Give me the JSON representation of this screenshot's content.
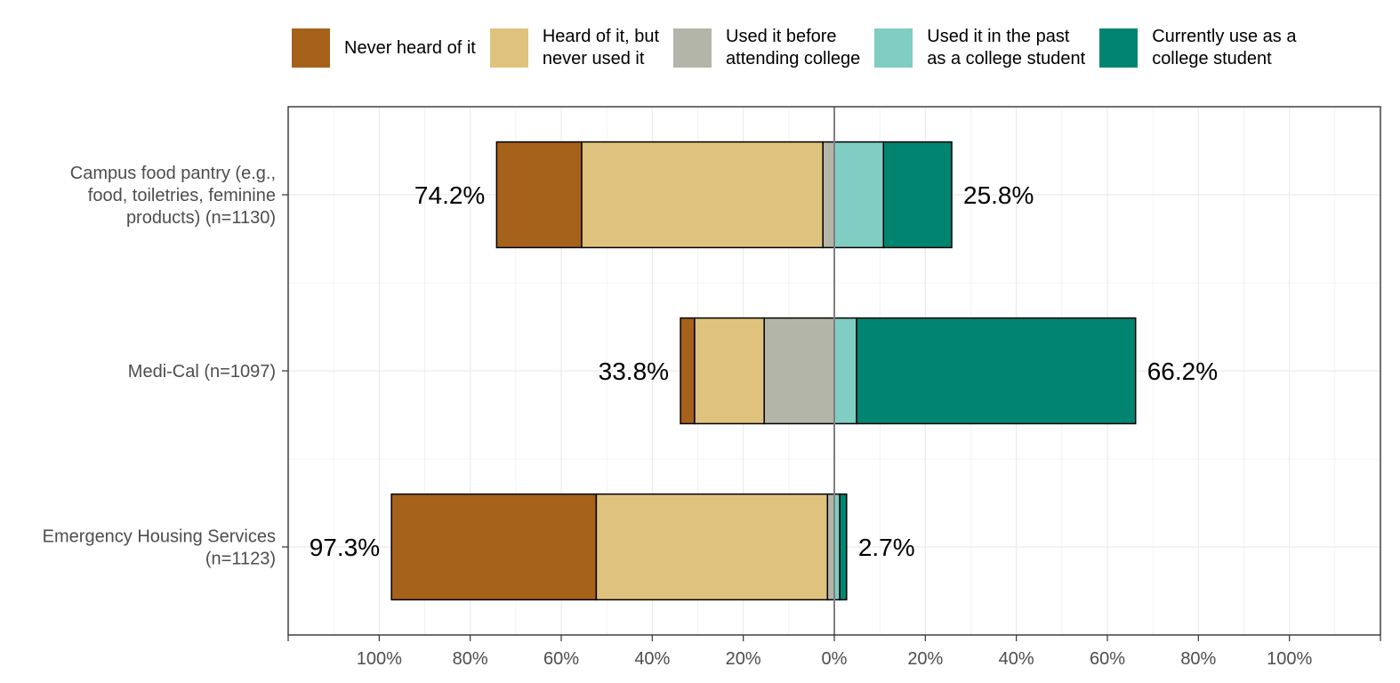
{
  "chart_data": {
    "type": "bar",
    "orientation": "horizontal",
    "stacking": "diverging",
    "categories": [
      "Campus food pantry (e.g.,\nfood, toiletries, feminine\nproducts) (n=1130)",
      "Medi-Cal (n=1097)",
      "Emergency Housing Services\n(n=1123)"
    ],
    "series": [
      {
        "name": "Never heard of it",
        "color": "#A6611A",
        "side": "negative",
        "values": [
          18.7,
          3.1,
          45.0
        ]
      },
      {
        "name": "Heard of it, but\nnever used it",
        "color": "#DFC27D",
        "side": "negative",
        "values": [
          53.0,
          15.3,
          50.8
        ]
      },
      {
        "name": "Used it before\nattending college",
        "color": "#B2B5A8",
        "side": "negative",
        "values": [
          2.5,
          15.4,
          1.5
        ]
      },
      {
        "name": "Used it in the past\nas a college student",
        "color": "#80CDC1",
        "side": "positive",
        "values": [
          10.8,
          4.9,
          1.2
        ]
      },
      {
        "name": "Currently use as a\ncollege student",
        "color": "#018571",
        "side": "positive",
        "values": [
          15.0,
          61.3,
          1.5
        ]
      }
    ],
    "totals": {
      "negative": [
        "74.2%",
        "33.8%",
        "97.3%"
      ],
      "positive": [
        "25.8%",
        "66.2%",
        "2.7%"
      ]
    },
    "x_ticks": [
      {
        "value": -100,
        "label": "100%"
      },
      {
        "value": -80,
        "label": "80%"
      },
      {
        "value": -60,
        "label": "60%"
      },
      {
        "value": -40,
        "label": "40%"
      },
      {
        "value": -20,
        "label": "20%"
      },
      {
        "value": 0,
        "label": "0%"
      },
      {
        "value": 20,
        "label": "20%"
      },
      {
        "value": 40,
        "label": "40%"
      },
      {
        "value": 60,
        "label": "60%"
      },
      {
        "value": 80,
        "label": "80%"
      },
      {
        "value": 100,
        "label": "100%"
      }
    ],
    "xlim": [
      -120,
      120
    ],
    "xlabel": "",
    "ylabel": "",
    "grid": true,
    "legend_position": "top"
  }
}
